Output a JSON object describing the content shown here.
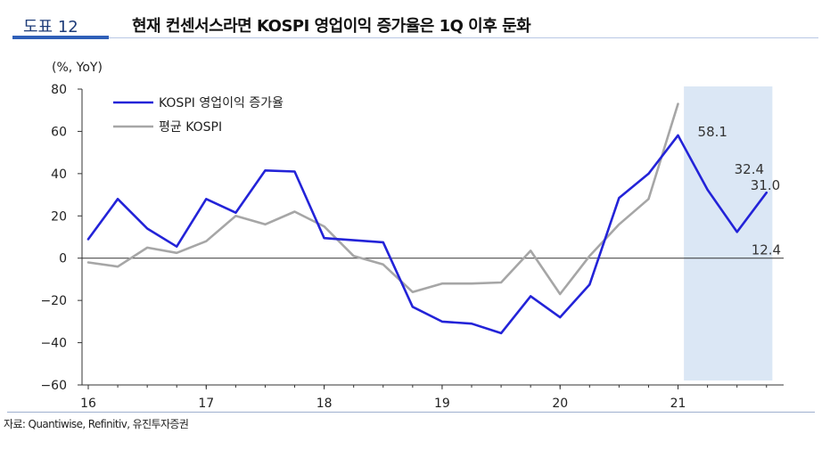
{
  "header": {
    "label": "도표 12",
    "title": "현재 컨센서스라면 KOSPI 영업이익 증가율은 1Q 이후 둔화"
  },
  "source": "자료: Quantiwise, Refinitiv, 유진투자증권",
  "colors": {
    "series_kospi_growth": "#2323d8",
    "series_avg_kospi": "#a6a6a6",
    "highlight_band": "#dbe7f5",
    "axis": "#333333"
  },
  "chart_data": {
    "type": "line",
    "ylabel": "(%, YoY)",
    "ylim": [
      -60,
      80
    ],
    "yticks": [
      "80",
      "60",
      "40",
      "20",
      "0",
      "−20",
      "−40",
      "−60"
    ],
    "ytick_values": [
      80,
      60,
      40,
      20,
      0,
      -20,
      -40,
      -60
    ],
    "xticks": [
      "16",
      "17",
      "18",
      "19",
      "20",
      "21"
    ],
    "xtick_values": [
      2016,
      2017,
      2018,
      2019,
      2020,
      2021
    ],
    "xlim": [
      2016,
      2021.85
    ],
    "grid": false,
    "legend_placement": "top-left",
    "highlight_range": [
      2021.05,
      2021.8
    ],
    "series": [
      {
        "name": "KOSPI 영업이익 증가율",
        "x": [
          2016.0,
          2016.25,
          2016.5,
          2016.75,
          2017.0,
          2017.25,
          2017.5,
          2017.75,
          2018.0,
          2018.25,
          2018.5,
          2018.75,
          2019.0,
          2019.25,
          2019.5,
          2019.75,
          2020.0,
          2020.25,
          2020.5,
          2020.75,
          2021.0,
          2021.25,
          2021.5,
          2021.75
        ],
        "y": [
          9,
          28,
          14,
          5.5,
          28,
          21.5,
          41.5,
          41,
          9.5,
          8.5,
          7.5,
          -23,
          -30,
          -31,
          -35.5,
          -18,
          -28,
          -12.5,
          28.5,
          40,
          58.1,
          32.4,
          12.4,
          31.0
        ]
      },
      {
        "name": "평균 KOSPI",
        "x": [
          2016.0,
          2016.25,
          2016.5,
          2016.75,
          2017.0,
          2017.25,
          2017.5,
          2017.75,
          2018.0,
          2018.25,
          2018.5,
          2018.75,
          2019.0,
          2019.25,
          2019.5,
          2019.75,
          2020.0,
          2020.25,
          2020.5,
          2020.75,
          2021.0
        ],
        "y": [
          -2,
          -4,
          5,
          2.5,
          8,
          20,
          16,
          22,
          15,
          1,
          -3,
          -16,
          -12,
          -12,
          -11.5,
          3.5,
          -17,
          1,
          16,
          28,
          73
        ]
      }
    ],
    "annotations": [
      {
        "text": "58.1",
        "x": 2021.0,
        "y": 58.1
      },
      {
        "text": "32.4",
        "x": 2021.25,
        "y": 32.4
      },
      {
        "text": "12.4",
        "x": 2021.5,
        "y": 12.4
      },
      {
        "text": "31.0",
        "x": 2021.75,
        "y": 31.0
      }
    ]
  }
}
